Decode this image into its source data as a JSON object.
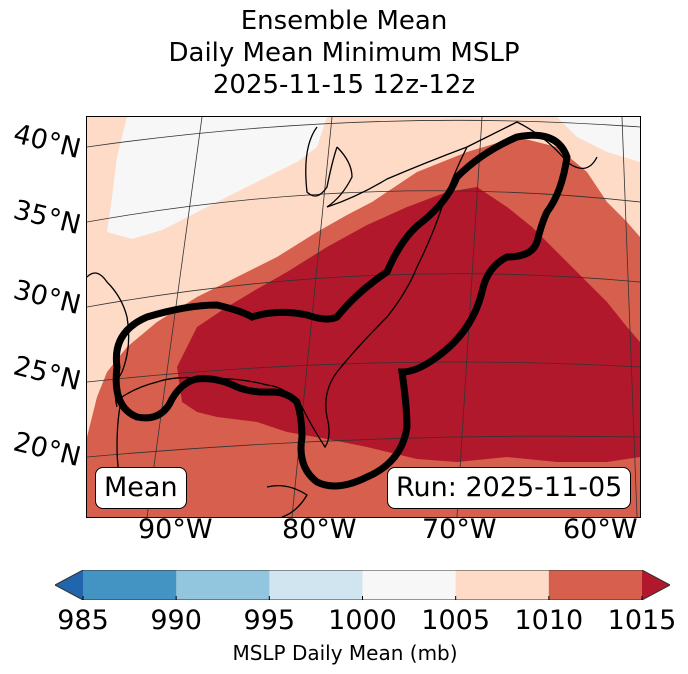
{
  "title": {
    "line1": "Ensemble Mean",
    "line2": "Daily Mean Minimum MSLP",
    "line3": "2025-11-15 12z-12z"
  },
  "map": {
    "projection": "Lambert conformal",
    "region": "Eastern United States, Gulf of Mexico, Western Atlantic",
    "lat_labels": [
      "40°N",
      "35°N",
      "30°N",
      "25°N",
      "20°N"
    ],
    "lon_labels": [
      "90°W",
      "80°W",
      "70°W",
      "60°W"
    ],
    "contour": "black outline enclosing Gulf coast and US East Coast (1015+ mb region)",
    "fill_categories_present": [
      "1000-1005",
      "1005-1010",
      "1010-1015",
      ">1015"
    ]
  },
  "annotations": {
    "left_box": "Mean",
    "right_box": "Run: 2025-11-05"
  },
  "chart_data": {
    "type": "heatmap",
    "title": "Ensemble Mean Daily Mean Minimum MSLP 2025-11-15 12z-12z",
    "colorbar": {
      "label": "MSLP Daily Mean (mb)",
      "ticks": [
        985,
        990,
        995,
        1000,
        1005,
        1010,
        1015
      ],
      "range": [
        985,
        1015
      ],
      "extend": "both",
      "bins": [
        {
          "range": "<985",
          "color": "#2166ac"
        },
        {
          "range": "985-990",
          "color": "#4393c3"
        },
        {
          "range": "990-995",
          "color": "#92c5de"
        },
        {
          "range": "995-1000",
          "color": "#d1e5f0"
        },
        {
          "range": "1000-1005",
          "color": "#f7f7f7"
        },
        {
          "range": "1005-1010",
          "color": "#fddbc7"
        },
        {
          "range": "1010-1015",
          "color": "#d6604d"
        },
        {
          "range": ">1015",
          "color": "#b2182b"
        }
      ]
    },
    "legend": "bottom"
  },
  "colors": {
    "c_white": "#f7f7f7",
    "c_peach": "#fddbc7",
    "c_red": "#d6604d",
    "c_dark": "#b2182b"
  }
}
